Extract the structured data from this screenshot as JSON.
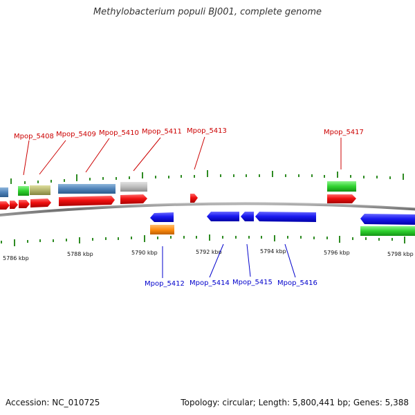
{
  "title": "Methylobacterium populi BJ001, complete genome",
  "footer": {
    "accession": "Accession: NC_010725",
    "summary": "Topology: circular; Length: 5,800,441 bp; Genes: 5,388"
  },
  "colors": {
    "forward_gene": "#e8101a",
    "reverse_gene": "#1515e0",
    "backbone": "#8a8a8a",
    "tick": "#2e8b22",
    "top_label": "#cc0000",
    "bottom_label": "#0000cc"
  },
  "scale_labels": [
    "5786 kbp",
    "5788 kbp",
    "5790 kbp",
    "5792 kbp",
    "5794 kbp",
    "5796 kbp",
    "5798 kbp"
  ],
  "gene_labels_top": [
    "Mpop_5408",
    "Mpop_5409",
    "Mpop_5410",
    "Mpop_5411",
    "Mpop_5413",
    "Mpop_5417"
  ],
  "gene_labels_bottom": [
    "Mpop_5412",
    "Mpop_5414",
    "Mpop_5415",
    "Mpop_5416"
  ]
}
